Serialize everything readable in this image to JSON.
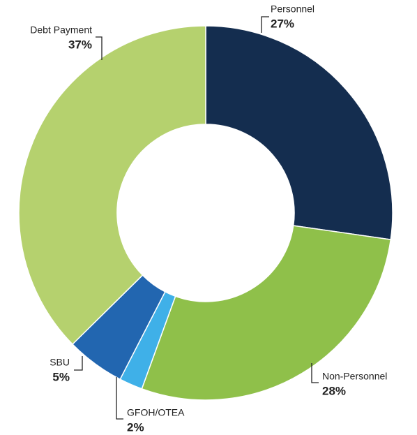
{
  "chart_data": {
    "type": "donut",
    "categories": [
      "Personnel",
      "Non-Personnel",
      "GFOH/OTEA",
      "SBU",
      "Debt Payment"
    ],
    "values": [
      27,
      28,
      2,
      5,
      37
    ],
    "value_labels": [
      "27%",
      "28%",
      "2%",
      "5%",
      "37%"
    ],
    "colors": [
      "#142d4f",
      "#8fc04a",
      "#3fb0e8",
      "#2266b0",
      "#b5d16e"
    ]
  }
}
